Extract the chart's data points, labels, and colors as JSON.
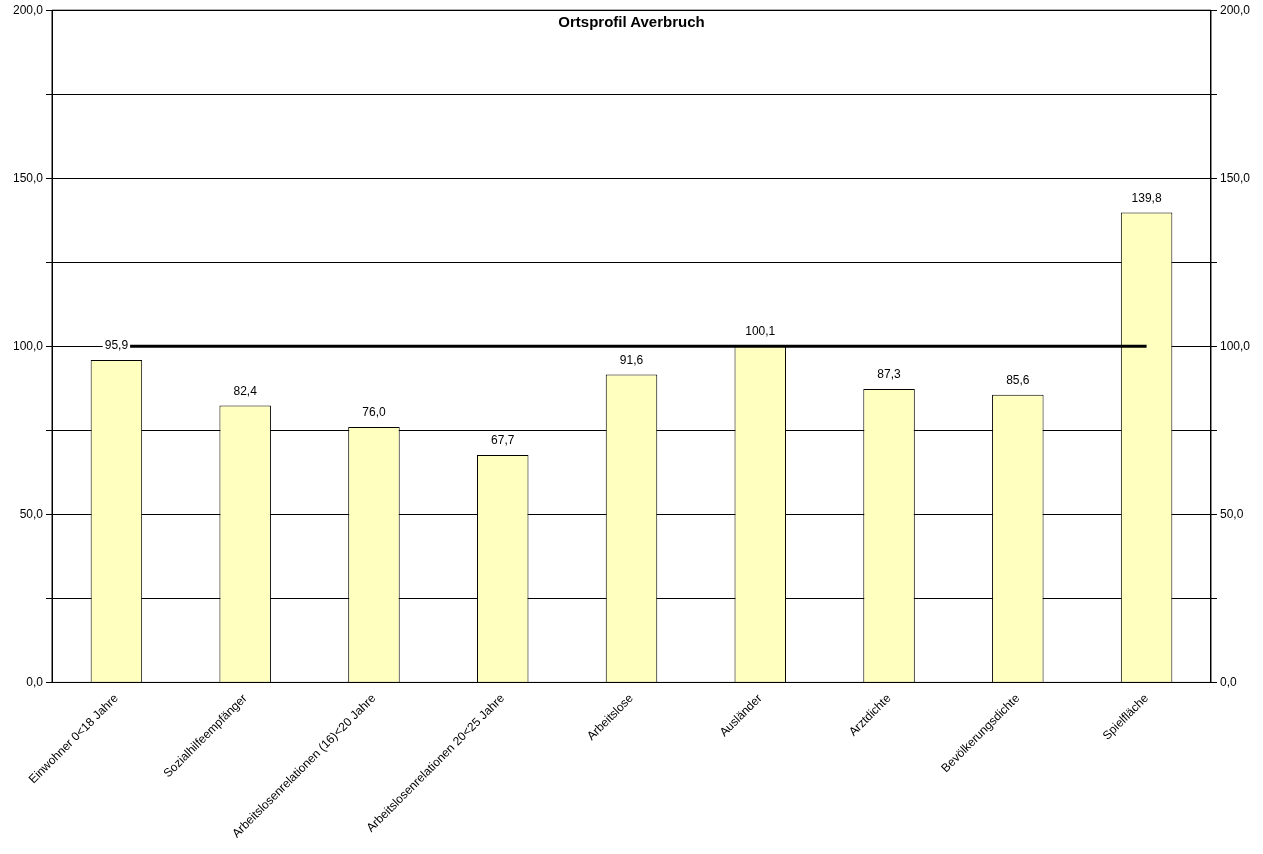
{
  "chart_data": {
    "type": "bar",
    "title": "Ortsprofil Averbruch",
    "categories": [
      "Einwohner 0<18 Jahre",
      "Sozialhilfeempfänger",
      "Arbeitslosenrelationen (16)<20 Jahre",
      "Arbeitslosenrelationen 20<25 Jahre",
      "Arbeitslose",
      "Ausländer",
      "Arztdichte",
      "Bevölkerungsdichte",
      "Spielfläche"
    ],
    "values": [
      95.9,
      82.4,
      76.0,
      67.7,
      91.6,
      100.1,
      87.3,
      85.6,
      139.8
    ],
    "value_labels": [
      "95,9",
      "82,4",
      "76,0",
      "67,7",
      "91,6",
      "100,1",
      "87,3",
      "85,6",
      "139,8"
    ],
    "color": "#ffffc0",
    "ylim": [
      0,
      200
    ],
    "yticks": [
      {
        "value": 0,
        "label": "0,0"
      },
      {
        "value": 25,
        "label": null
      },
      {
        "value": 50,
        "label": "50,0"
      },
      {
        "value": 75,
        "label": null
      },
      {
        "value": 100,
        "label": "100,0"
      },
      {
        "value": 125,
        "label": null
      },
      {
        "value": 150,
        "label": "150,0"
      },
      {
        "value": 175,
        "label": null
      },
      {
        "value": 200,
        "label": "200,0"
      }
    ],
    "y2lim": [
      0,
      200
    ],
    "y2ticks": [
      {
        "value": 0,
        "label": "0,0"
      },
      {
        "value": 25,
        "label": null
      },
      {
        "value": 50,
        "label": "50,0"
      },
      {
        "value": 75,
        "label": null
      },
      {
        "value": 100,
        "label": "100,0"
      },
      {
        "value": 125,
        "label": null
      },
      {
        "value": 150,
        "label": "150,0"
      },
      {
        "value": 175,
        "label": null
      },
      {
        "value": 200,
        "label": "200,0"
      }
    ],
    "ref_lines": [
      {
        "axis": "y",
        "value": 100,
        "label": null,
        "color": "#000000"
      }
    ],
    "grid": "y",
    "legend": false
  }
}
